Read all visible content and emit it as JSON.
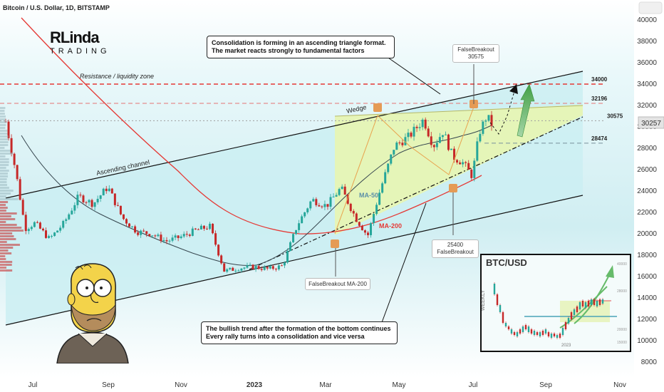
{
  "header": {
    "symbol_title": "Bitcoin / U.S. Dollar, 1D, BITSTAMP"
  },
  "logo": {
    "brand_top": "RLinda",
    "brand_bottom": "TRADING"
  },
  "annotations": {
    "top_callout_line1": "Consolidation is forming in an ascending triangle format.",
    "top_callout_line2": "The market reacts strongly to fundamental factors",
    "bottom_callout_line1": "The bullish trend after the formation of the bottom continues",
    "bottom_callout_line2": "Every rally turns into a consolidation and vice versa",
    "resistance_zone": "Resistance / liquidity zone",
    "ascending_channel": "Ascending channel",
    "wedge": "Wedge",
    "ma50": "MA-50",
    "ma200": "MA-200",
    "false_breakout_top_label": "FalseBreakout",
    "false_breakout_top_value": "30575",
    "false_breakout_bottom_value": "25400",
    "false_breakout_bottom_label": "FalseBreakout",
    "false_breakout_ma200": "FalseBreakout MA-200"
  },
  "chart_data": {
    "type": "line",
    "title": "Bitcoin / U.S. Dollar, 1D, BITSTAMP",
    "x_ticks": [
      "Jul",
      "Sep",
      "Nov",
      "2023",
      "Mar",
      "May",
      "Jul",
      "Sep",
      "Nov"
    ],
    "y_ticks": [
      8000,
      10000,
      12000,
      14000,
      16000,
      18000,
      20000,
      22000,
      24000,
      26000,
      28000,
      30000,
      32000,
      34000,
      36000,
      38000,
      40000
    ],
    "ylim": [
      7000,
      41000
    ],
    "current_price": "30257",
    "levels": [
      {
        "value": 34000,
        "label": "34000",
        "style": "dashed",
        "color": "#e53935"
      },
      {
        "value": 32196,
        "label": "32196",
        "style": "dashed",
        "color": "#e57373"
      },
      {
        "value": 30575,
        "label": "30575",
        "style": "dotted",
        "color": "#9e9e9e"
      },
      {
        "value": 28474,
        "label": "28474",
        "style": "dashed",
        "color": "#78909c"
      }
    ],
    "price_series": [
      {
        "t": 0,
        "v": 30500
      },
      {
        "t": 0.02,
        "v": 26000
      },
      {
        "t": 0.04,
        "v": 20500
      },
      {
        "t": 0.06,
        "v": 21000
      },
      {
        "t": 0.09,
        "v": 19500
      },
      {
        "t": 0.12,
        "v": 21000
      },
      {
        "t": 0.15,
        "v": 23500
      },
      {
        "t": 0.18,
        "v": 22800
      },
      {
        "t": 0.21,
        "v": 24400
      },
      {
        "t": 0.24,
        "v": 21500
      },
      {
        "t": 0.27,
        "v": 20200
      },
      {
        "t": 0.3,
        "v": 20000
      },
      {
        "t": 0.33,
        "v": 19300
      },
      {
        "t": 0.36,
        "v": 19700
      },
      {
        "t": 0.39,
        "v": 20300
      },
      {
        "t": 0.42,
        "v": 20700
      },
      {
        "t": 0.45,
        "v": 16500
      },
      {
        "t": 0.48,
        "v": 16800
      },
      {
        "t": 0.51,
        "v": 16900
      },
      {
        "t": 0.54,
        "v": 16700
      },
      {
        "t": 0.57,
        "v": 17000
      },
      {
        "t": 0.6,
        "v": 20800
      },
      {
        "t": 0.63,
        "v": 23200
      },
      {
        "t": 0.66,
        "v": 22600
      },
      {
        "t": 0.69,
        "v": 24300
      },
      {
        "t": 0.72,
        "v": 21500
      },
      {
        "t": 0.745,
        "v": 19800
      },
      {
        "t": 0.77,
        "v": 24000
      },
      {
        "t": 0.8,
        "v": 28200
      },
      {
        "t": 0.83,
        "v": 29100
      },
      {
        "t": 0.86,
        "v": 30700
      },
      {
        "t": 0.88,
        "v": 28200
      },
      {
        "t": 0.9,
        "v": 29600
      },
      {
        "t": 0.92,
        "v": 27200
      },
      {
        "t": 0.94,
        "v": 26700
      },
      {
        "t": 0.96,
        "v": 25400
      },
      {
        "t": 0.975,
        "v": 29500
      },
      {
        "t": 0.99,
        "v": 31000
      },
      {
        "t": 1.0,
        "v": 30257
      }
    ],
    "inset": {
      "title": "BTC/USD",
      "side_label": "WEEKLY",
      "x_tick": "2023",
      "y_ticks": [
        "40000",
        "28000",
        "20000",
        "15000"
      ]
    }
  },
  "colors": {
    "channel_fill": "#cdeef3",
    "triangle_fill": "#e4f3b8",
    "candle_up": "#26a69a",
    "candle_down": "#c62828",
    "ma50": "#37474f",
    "ma200": "#e53935",
    "arrow_green": "#66bb6a"
  }
}
